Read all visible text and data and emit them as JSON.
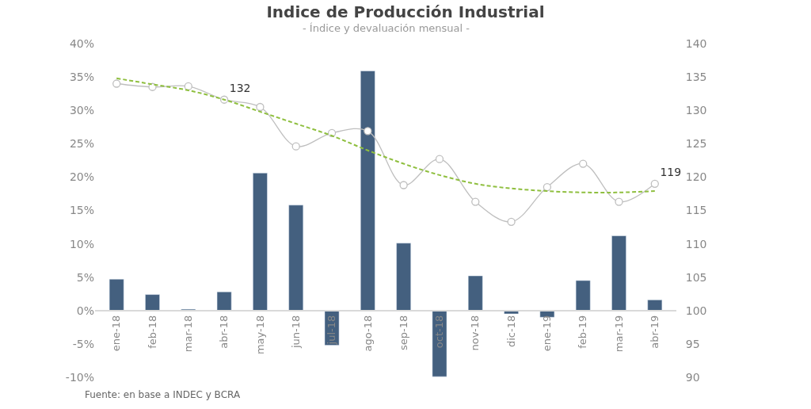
{
  "chart_data": {
    "type": "bar",
    "title": "Indice de Producción Industrial",
    "subtitle": "- Índice y devaluación mensual -",
    "categories": [
      "ene-18",
      "feb-18",
      "mar-18",
      "abr-18",
      "may-18",
      "jun-18",
      "jul-18",
      "ago-18",
      "sep-18",
      "oct-18",
      "nov-18",
      "dic-18",
      "ene-19",
      "feb-19",
      "mar-19",
      "abr-19"
    ],
    "series": [
      {
        "color": "#44607f",
        "values": [
          4.7,
          2.4,
          0.2,
          2.8,
          20.6,
          15.8,
          -5.2,
          35.9,
          10.1,
          -9.9,
          5.2,
          -0.5,
          -1.0,
          4.5,
          11.2,
          1.6
        ]
      },
      {
        "type": "line",
        "axis": "y2",
        "color": "#bfbfbf",
        "marker": "circle",
        "line_style": "solid",
        "values": [
          134.0,
          133.5,
          133.6,
          131.6,
          130.5,
          124.6,
          126.6,
          126.9,
          118.8,
          122.7,
          116.3,
          113.3,
          118.5,
          122.0,
          116.3,
          119.0
        ],
        "value_labels": [
          null,
          null,
          null,
          "132",
          null,
          null,
          null,
          null,
          null,
          null,
          null,
          null,
          null,
          null,
          null,
          "119"
        ]
      },
      {
        "type": "line",
        "axis": "y2",
        "color": "#8fbf3f",
        "marker": "none",
        "line_style": "dashed",
        "values": [
          134.8,
          133.9,
          133.0,
          131.6,
          129.8,
          128.0,
          126.2,
          124.0,
          122.0,
          120.3,
          119.0,
          118.3,
          117.9,
          117.7,
          117.7,
          117.9
        ]
      }
    ],
    "ylim": [
      -10,
      40
    ],
    "yticks": [
      {
        "value": -10,
        "label": "-10%"
      },
      {
        "value": -5,
        "label": "-5%"
      },
      {
        "value": 0,
        "label": "0%"
      },
      {
        "value": 5,
        "label": "5%"
      },
      {
        "value": 10,
        "label": "10%"
      },
      {
        "value": 15,
        "label": "15%"
      },
      {
        "value": 20,
        "label": "20%"
      },
      {
        "value": 25,
        "label": "25%"
      },
      {
        "value": 30,
        "label": "30%"
      },
      {
        "value": 35,
        "label": "35%"
      },
      {
        "value": 40,
        "label": "40%"
      }
    ],
    "y2lim": [
      90,
      140
    ],
    "y2ticks": [
      90,
      95,
      100,
      105,
      110,
      115,
      120,
      125,
      130,
      135,
      140
    ],
    "annotations": [
      "Fuente: en base a INDEC y BCRA"
    ]
  }
}
